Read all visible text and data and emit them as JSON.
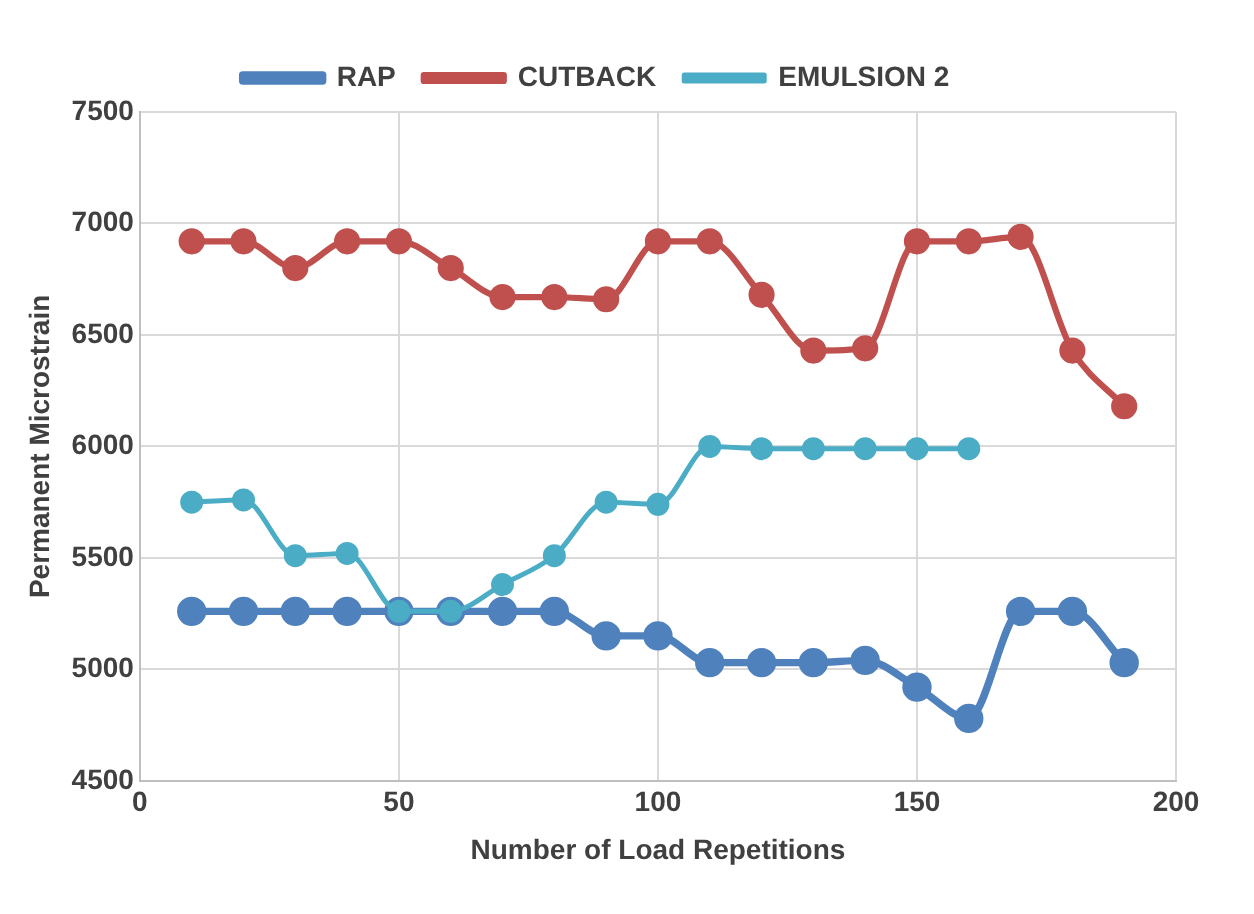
{
  "chart_data": {
    "type": "line",
    "xlabel": "Number of Load Repetitions",
    "ylabel": "Permanent Microstrain",
    "x": [
      10,
      20,
      30,
      40,
      50,
      60,
      70,
      80,
      90,
      100,
      110,
      120,
      130,
      140,
      150,
      160,
      170,
      180,
      190
    ],
    "series": [
      {
        "name": "RAP",
        "color": "#4f81bd",
        "values": [
          5260,
          5260,
          5260,
          5260,
          5260,
          5260,
          5260,
          5260,
          5150,
          5150,
          5030,
          5030,
          5030,
          5040,
          4920,
          4780,
          5260,
          5260,
          5030
        ]
      },
      {
        "name": "CUTBACK",
        "color": "#c0504d",
        "values": [
          6920,
          6920,
          6800,
          6920,
          6920,
          6800,
          6670,
          6670,
          6660,
          6920,
          6920,
          6680,
          6430,
          6440,
          6920,
          6920,
          6940,
          6430,
          6180
        ]
      },
      {
        "name": "EMULSION 2",
        "color": "#4bacc6",
        "values": [
          5750,
          5760,
          5510,
          5520,
          5260,
          5260,
          5380,
          5510,
          5750,
          5740,
          6000,
          5990,
          5990,
          5990,
          5990,
          5990,
          null,
          null,
          null
        ]
      }
    ],
    "xlim": [
      0,
      200
    ],
    "xticks": [
      0,
      50,
      100,
      150,
      200
    ],
    "ylim": [
      4500,
      7500
    ],
    "yticks": [
      4500,
      5000,
      5500,
      6000,
      6500,
      7000,
      7500
    ],
    "grid": true,
    "legend": "top",
    "marker": "circle",
    "line_style": "solid"
  }
}
